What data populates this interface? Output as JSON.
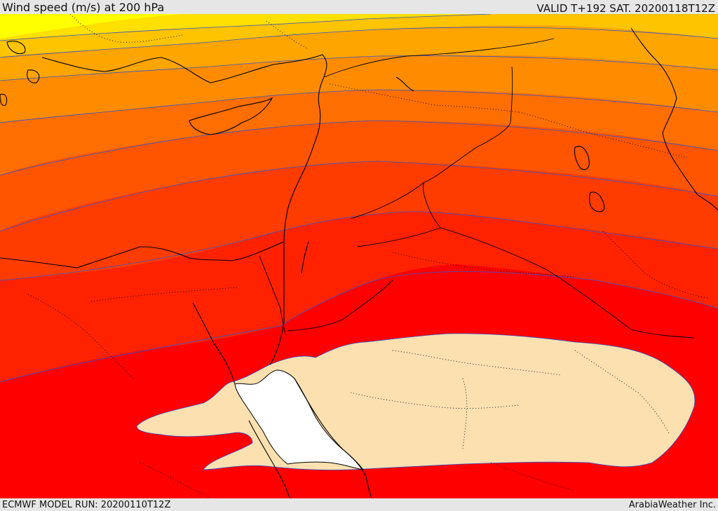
{
  "header": {
    "title": "Wind speed (m/s) at 200 hPa",
    "valid": "VALID T+192 SAT. 20200118T12Z"
  },
  "footer": {
    "model_run": "ECMWF MODEL RUN: 20200110T12Z",
    "credit": "ArabiaWeather Inc."
  },
  "map": {
    "region": "Eastern Mediterranean, Levant, Egypt and northern Arabia",
    "contour_colors": [
      "#ffff00",
      "#ffe000",
      "#ffc400",
      "#ffa500",
      "#ff8c00",
      "#ff6e00",
      "#ff5500",
      "#ff3c00",
      "#ff2200",
      "#ff0000",
      "#fde0b0",
      "#ffffff"
    ],
    "coastline_color": "#000000",
    "border_style": "dotted",
    "contour_line_color": "#3355cc"
  }
}
